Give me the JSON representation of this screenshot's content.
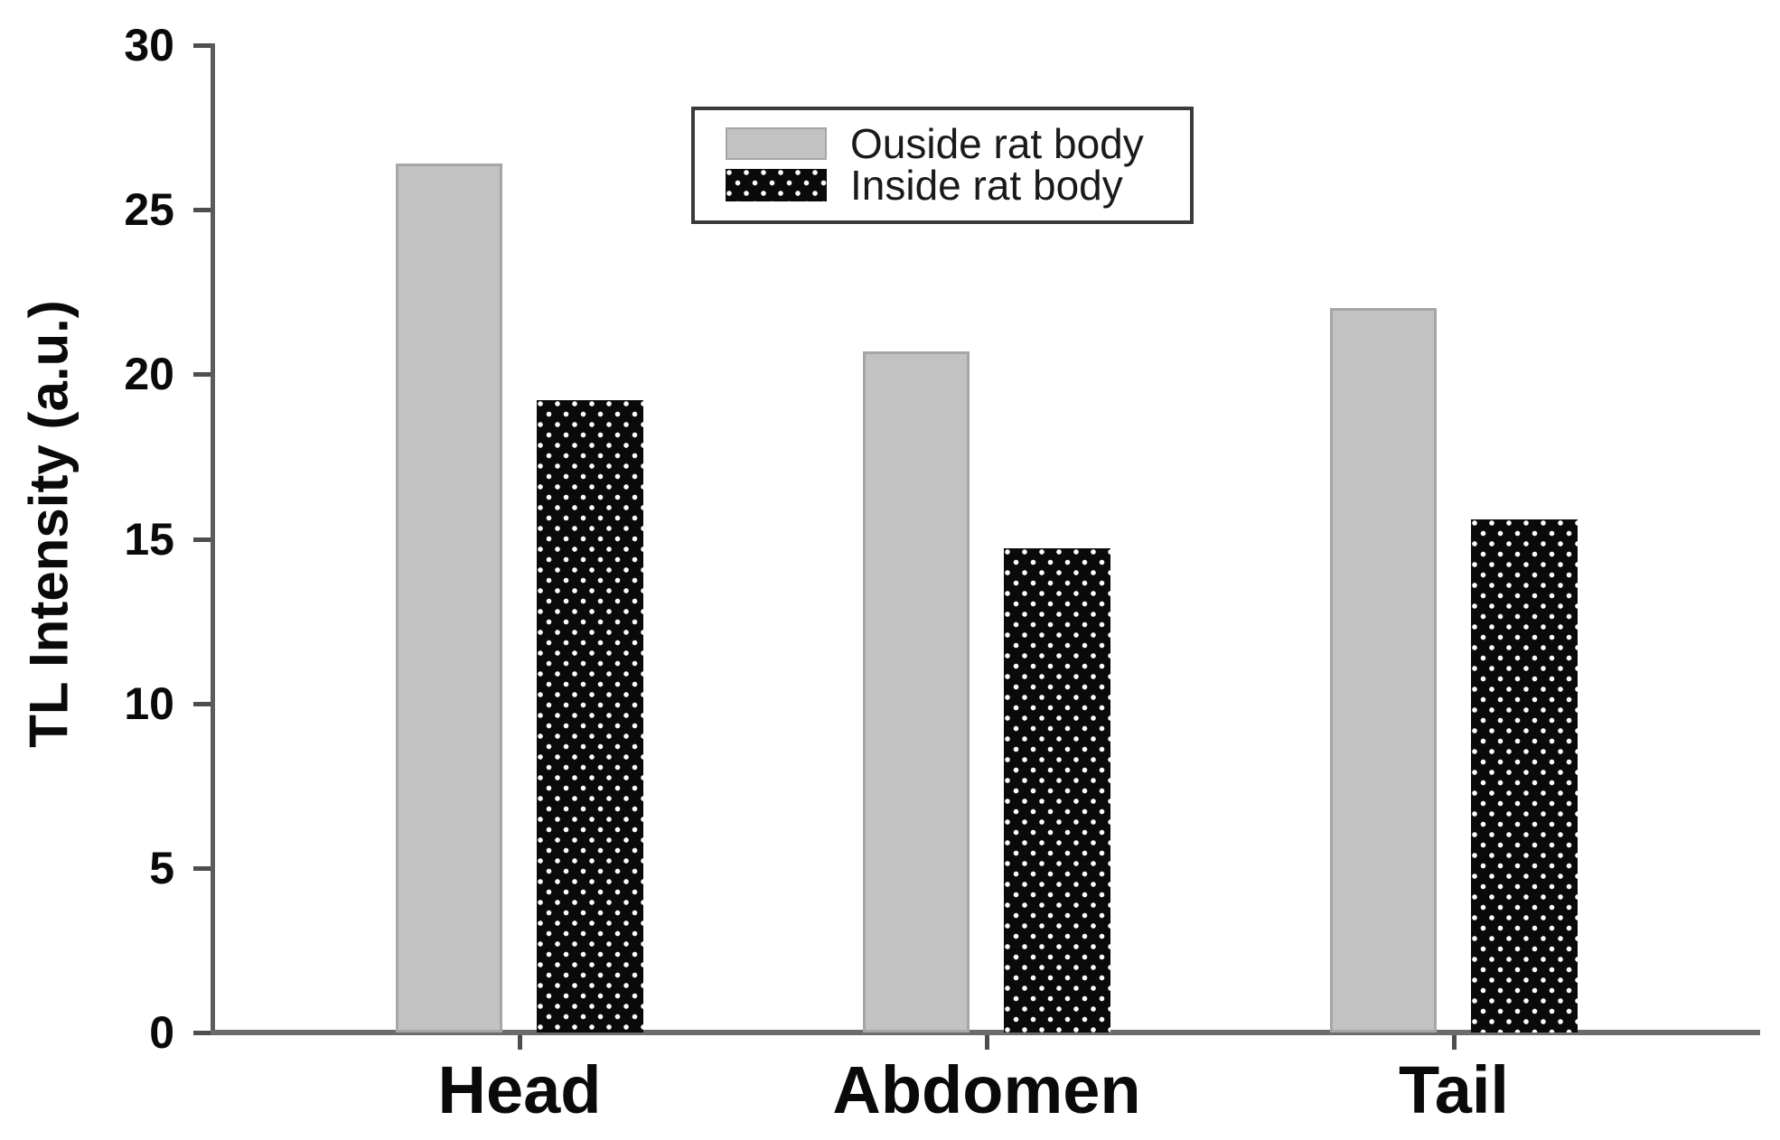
{
  "chart_data": {
    "type": "bar",
    "title": "",
    "xlabel": "",
    "ylabel": "TL Intensity (a.u.)",
    "ylim": [
      0,
      30
    ],
    "y_ticks": [
      0,
      5,
      10,
      15,
      20,
      25,
      30
    ],
    "grid": false,
    "legend_position": "upper-center-inside",
    "categories": [
      "Head",
      "Abdomen",
      "Tail"
    ],
    "series": [
      {
        "name": "Ouside rat body",
        "style": "solid-gray",
        "values": [
          26.4,
          20.7,
          22.0
        ]
      },
      {
        "name": "Inside rat body",
        "style": "black-dotted",
        "values": [
          19.2,
          14.7,
          15.6
        ]
      }
    ]
  },
  "colors": {
    "outside_bar_fill": "#c2c2c2",
    "outside_bar_edge": "#a6a6a6",
    "inside_bar_fill": "#0a0a0a",
    "inside_bar_dots": "#ffffff",
    "axis_line": "#6b6b6b",
    "tick_text": "#0a0a0a",
    "legend_border": "#3a3a3a",
    "background": "#ffffff"
  }
}
